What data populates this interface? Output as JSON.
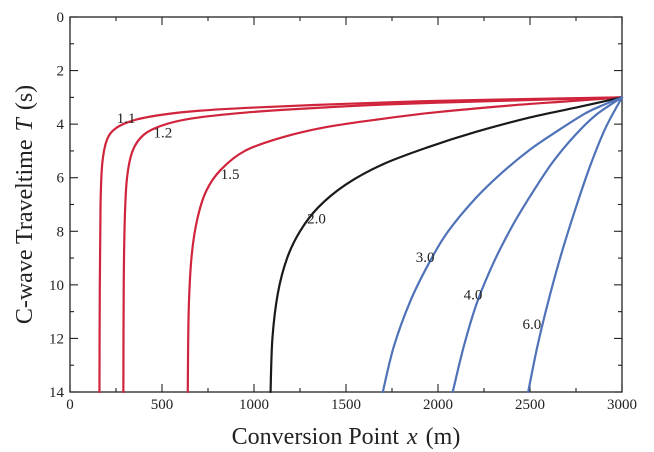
{
  "chart_data": {
    "type": "line",
    "title": "",
    "xlabel": "Conversion Point",
    "xlabel_symbol": "x",
    "xlabel_unit": "(m)",
    "ylabel": "C-wave Traveltime",
    "ylabel_symbol": "T",
    "ylabel_unit": "(s)",
    "xlim": [
      0,
      3000
    ],
    "ylim": [
      0,
      14
    ],
    "y_inverted": true,
    "grid": false,
    "legend": "none",
    "x_ticks": [
      "0",
      "500",
      "1000",
      "1500",
      "2000",
      "2500",
      "3000"
    ],
    "y_ticks": [
      "0",
      "2",
      "4",
      "6",
      "8",
      "10",
      "12",
      "14"
    ],
    "series": [
      {
        "name": "1.1",
        "color": "#d0243c",
        "x": [
          160,
          162,
          166,
          175,
          200,
          250,
          350,
          500,
          700,
          1000,
          1500,
          2000,
          2500,
          3000
        ],
        "y": [
          14,
          10,
          7,
          5.5,
          4.6,
          4.15,
          3.85,
          3.65,
          3.5,
          3.38,
          3.24,
          3.13,
          3.06,
          3.0
        ]
      },
      {
        "name": "1.2",
        "color": "#d0243c",
        "x": [
          290,
          292,
          298,
          310,
          340,
          400,
          500,
          650,
          900,
          1200,
          1600,
          2000,
          2500,
          3000
        ],
        "y": [
          14,
          10,
          7.5,
          6.0,
          5.0,
          4.4,
          4.05,
          3.8,
          3.6,
          3.45,
          3.3,
          3.2,
          3.1,
          3.0
        ]
      },
      {
        "name": "1.5",
        "color": "#d0243c",
        "x": [
          640,
          645,
          660,
          690,
          740,
          820,
          950,
          1150,
          1400,
          1700,
          2000,
          2400,
          2700,
          3000
        ],
        "y": [
          14,
          11,
          9,
          7.6,
          6.5,
          5.7,
          5.0,
          4.5,
          4.1,
          3.8,
          3.55,
          3.3,
          3.15,
          3.0
        ]
      },
      {
        "name": "2.0",
        "color": "#1a1a1a",
        "x": [
          1090,
          1100,
          1130,
          1180,
          1250,
          1350,
          1500,
          1700,
          1950,
          2200,
          2500,
          2750,
          3000
        ],
        "y": [
          14,
          12.0,
          10.3,
          9.0,
          8.0,
          7.1,
          6.25,
          5.5,
          4.85,
          4.3,
          3.75,
          3.38,
          3.0
        ]
      },
      {
        "name": "3.0",
        "color": "#4f72b8",
        "x": [
          1700,
          1760,
          1850,
          1950,
          2050,
          2200,
          2350,
          2500,
          2650,
          2800,
          2900,
          3000
        ],
        "y": [
          14,
          12.3,
          10.6,
          9.2,
          8.05,
          6.8,
          5.8,
          4.95,
          4.25,
          3.6,
          3.28,
          3.0
        ]
      },
      {
        "name": "4.0",
        "color": "#4f72b8",
        "x": [
          2080,
          2140,
          2210,
          2300,
          2400,
          2500,
          2620,
          2740,
          2860,
          3000
        ],
        "y": [
          14,
          12.3,
          10.7,
          9.2,
          7.85,
          6.7,
          5.45,
          4.45,
          3.65,
          3.0
        ]
      },
      {
        "name": "6.0",
        "color": "#4f72b8",
        "x": [
          2490,
          2540,
          2600,
          2670,
          2750,
          2830,
          2910,
          3000
        ],
        "y": [
          14,
          12.3,
          10.6,
          8.85,
          7.1,
          5.5,
          4.15,
          3.0
        ]
      }
    ],
    "curve_labels": [
      {
        "text": "1.1",
        "x": 305,
        "y": 3.95
      },
      {
        "text": "1.2",
        "x": 505,
        "y": 4.5
      },
      {
        "text": "1.5",
        "x": 870,
        "y": 6.05
      },
      {
        "text": "2.0",
        "x": 1340,
        "y": 7.7
      },
      {
        "text": "3.0",
        "x": 1930,
        "y": 9.15
      },
      {
        "text": "4.0",
        "x": 2190,
        "y": 10.55
      },
      {
        "text": "6.0",
        "x": 2510,
        "y": 11.65
      }
    ]
  }
}
